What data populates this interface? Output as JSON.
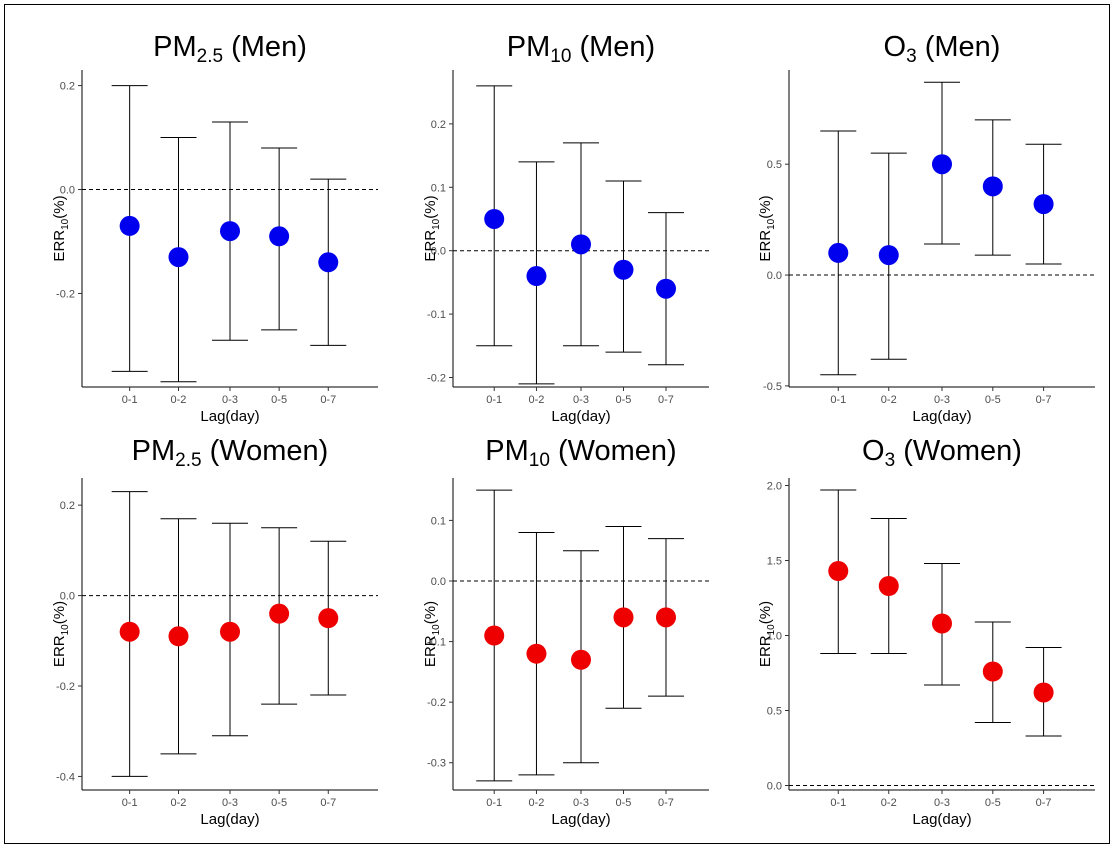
{
  "chart_data": [
    {
      "type": "scatter",
      "title": "PM",
      "title_sub": "2.5",
      "title_suffix": " (Men)",
      "xlabel": "Lag(day)",
      "ylabel": "ERR",
      "ylabel_sub": "10",
      "ylabel_suffix": "(%)",
      "categories": [
        "0-1",
        "0-2",
        "0-3",
        "0-5",
        "0-7"
      ],
      "values": [
        -0.07,
        -0.13,
        -0.08,
        -0.09,
        -0.14
      ],
      "lower": [
        -0.35,
        -0.37,
        -0.29,
        -0.27,
        -0.3
      ],
      "upper": [
        0.2,
        0.1,
        0.13,
        0.08,
        0.02
      ],
      "ylim": [
        -0.38,
        0.23
      ],
      "yticks": [
        -0.2,
        0.0,
        0.2
      ],
      "ytick_labels": [
        "-0.2",
        "0.0",
        "0.2"
      ],
      "reference_line": 0,
      "color": "#0000ee",
      "grid": false
    },
    {
      "type": "scatter",
      "title": "PM",
      "title_sub": "10",
      "title_suffix": " (Men)",
      "xlabel": "Lag(day)",
      "ylabel": "ERR",
      "ylabel_sub": "10",
      "ylabel_suffix": "(%)",
      "categories": [
        "0-1",
        "0-2",
        "0-3",
        "0-5",
        "0-7"
      ],
      "values": [
        0.05,
        -0.04,
        0.01,
        -0.03,
        -0.06
      ],
      "lower": [
        -0.15,
        -0.21,
        -0.15,
        -0.16,
        -0.18
      ],
      "upper": [
        0.26,
        0.14,
        0.17,
        0.11,
        0.06
      ],
      "ylim": [
        -0.215,
        0.285
      ],
      "yticks": [
        -0.2,
        -0.1,
        0.0,
        0.1,
        0.2
      ],
      "ytick_labels": [
        "-0.2",
        "-0.1",
        "0.0",
        "0.1",
        "0.2"
      ],
      "reference_line": 0,
      "color": "#0000ee",
      "grid": false
    },
    {
      "type": "scatter",
      "title": "O",
      "title_sub": "3",
      "title_suffix": " (Men)",
      "xlabel": "Lag(day)",
      "ylabel": "ERR",
      "ylabel_sub": "10",
      "ylabel_suffix": "(%)",
      "categories": [
        "0-1",
        "0-2",
        "0-3",
        "0-5",
        "0-7"
      ],
      "values": [
        0.1,
        0.09,
        0.5,
        0.4,
        0.32
      ],
      "lower": [
        -0.45,
        -0.38,
        0.14,
        0.09,
        0.05
      ],
      "upper": [
        0.65,
        0.55,
        0.87,
        0.7,
        0.59
      ],
      "ylim": [
        -0.505,
        0.925
      ],
      "yticks": [
        -0.5,
        0.0,
        0.5
      ],
      "ytick_labels": [
        "-0.5",
        "0.0",
        "0.5"
      ],
      "reference_line": 0,
      "color": "#0000ee",
      "grid": false
    },
    {
      "type": "scatter",
      "title": "PM",
      "title_sub": "2.5",
      "title_suffix": " (Women)",
      "xlabel": "Lag(day)",
      "ylabel": "ERR",
      "ylabel_sub": "10",
      "ylabel_suffix": "(%)",
      "categories": [
        "0-1",
        "0-2",
        "0-3",
        "0-5",
        "0-7"
      ],
      "values": [
        -0.08,
        -0.09,
        -0.08,
        -0.04,
        -0.05
      ],
      "lower": [
        -0.4,
        -0.35,
        -0.31,
        -0.24,
        -0.22
      ],
      "upper": [
        0.23,
        0.17,
        0.16,
        0.15,
        0.12
      ],
      "ylim": [
        -0.43,
        0.26
      ],
      "yticks": [
        -0.4,
        -0.2,
        0.0,
        0.2
      ],
      "ytick_labels": [
        "-0.4",
        "-0.2",
        "0.0",
        "0.2"
      ],
      "reference_line": 0,
      "color": "#ee0000",
      "grid": false
    },
    {
      "type": "scatter",
      "title": "PM",
      "title_sub": "10",
      "title_suffix": " (Women)",
      "xlabel": "Lag(day)",
      "ylabel": "ERR",
      "ylabel_sub": "10",
      "ylabel_suffix": "(%)",
      "categories": [
        "0-1",
        "0-2",
        "0-3",
        "0-5",
        "0-7"
      ],
      "values": [
        -0.09,
        -0.12,
        -0.13,
        -0.06,
        -0.06
      ],
      "lower": [
        -0.33,
        -0.32,
        -0.3,
        -0.21,
        -0.19
      ],
      "upper": [
        0.15,
        0.08,
        0.05,
        0.09,
        0.07
      ],
      "ylim": [
        -0.345,
        0.17
      ],
      "yticks": [
        -0.3,
        -0.2,
        -0.1,
        0.0,
        0.1
      ],
      "ytick_labels": [
        "-0.3",
        "-0.2",
        "-0.1",
        "0.0",
        "0.1"
      ],
      "reference_line": 0,
      "color": "#ee0000",
      "grid": false
    },
    {
      "type": "scatter",
      "title": "O",
      "title_sub": "3",
      "title_suffix": " (Women)",
      "xlabel": "Lag(day)",
      "ylabel": "ERR",
      "ylabel_sub": "10",
      "ylabel_suffix": "(%)",
      "categories": [
        "0-1",
        "0-2",
        "0-3",
        "0-5",
        "0-7"
      ],
      "values": [
        1.43,
        1.33,
        1.08,
        0.76,
        0.62
      ],
      "lower": [
        0.88,
        0.88,
        0.67,
        0.42,
        0.33
      ],
      "upper": [
        1.97,
        1.78,
        1.48,
        1.09,
        0.92
      ],
      "ylim": [
        -0.03,
        2.05
      ],
      "yticks": [
        0.0,
        0.5,
        1.0,
        1.5,
        2.0
      ],
      "ytick_labels": [
        "0.0",
        "0.5",
        "1.0",
        "1.5",
        "2.0"
      ],
      "reference_line": 0,
      "color": "#ee0000",
      "grid": false
    }
  ]
}
